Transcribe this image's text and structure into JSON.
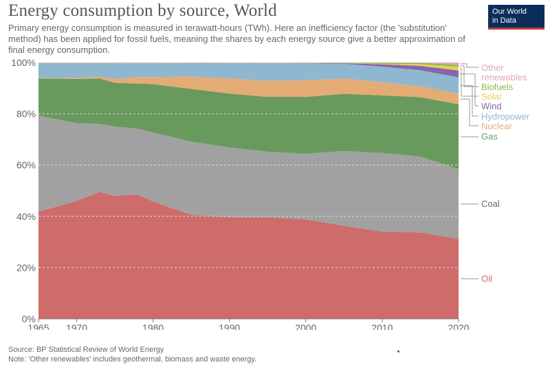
{
  "title": "Energy consumption by source, World",
  "subtitle": "Primary energy consumption is measured in terawatt-hours (TWh). Here an inefficiency factor (the 'substitution' method) has been applied for fossil fuels, meaning the shares by each energy source give a better approximation of final energy consumption.",
  "logo": {
    "line1": "Our World",
    "line2": "in Data"
  },
  "source": "Source: BP Statistical Review of World Energy",
  "note": "Note: 'Other renewables' includes geothermal, biomass and waste energy.",
  "colors": {
    "oil": "#ce6b6b",
    "coal": "#a1a1a1",
    "gas": "#689a5d",
    "nuclear": "#e5ab75",
    "hydropower": "#8fb7cf",
    "wind": "#8664ae",
    "solar": "#e6cf52",
    "biofuels": "#8fb64b",
    "other": "#dfa6b2"
  },
  "chart_data": {
    "type": "area",
    "stacked": true,
    "normalized": true,
    "title": "Energy consumption by source, World",
    "xlim": [
      1965,
      2020
    ],
    "ylim": [
      0,
      100
    ],
    "x_ticks": [
      1965,
      1970,
      1980,
      1990,
      2000,
      2010,
      2020
    ],
    "y_ticks": [
      0,
      20,
      40,
      60,
      80,
      100
    ],
    "y_tick_labels": [
      "0%",
      "20%",
      "40%",
      "60%",
      "80%",
      "100%"
    ],
    "x": [
      1965,
      1970,
      1973,
      1975,
      1978,
      1980,
      1985,
      1990,
      1995,
      2000,
      2005,
      2010,
      2015,
      2020
    ],
    "series": [
      {
        "name": "Oil",
        "label": "Oil",
        "values": [
          41.8,
          46.0,
          49.5,
          48.0,
          48.5,
          45.7,
          40.6,
          39.6,
          39.6,
          38.8,
          36.3,
          34.0,
          33.7,
          31.2
        ]
      },
      {
        "name": "Coal",
        "label": "Coal",
        "values": [
          37.5,
          30.3,
          26.6,
          27.0,
          25.7,
          27.0,
          28.5,
          27.3,
          25.6,
          25.6,
          29.2,
          30.7,
          29.6,
          27.2
        ]
      },
      {
        "name": "Gas",
        "label": "Gas",
        "values": [
          14.5,
          17.3,
          17.7,
          17.1,
          17.6,
          18.9,
          20.6,
          21.0,
          21.4,
          22.2,
          22.3,
          22.5,
          23.2,
          25.3
        ]
      },
      {
        "name": "Nuclear",
        "label": "Nuclear",
        "values": [
          0.2,
          0.4,
          0.7,
          1.5,
          2.5,
          2.7,
          4.8,
          5.9,
          6.2,
          6.5,
          6.0,
          5.1,
          4.3,
          4.1
        ]
      },
      {
        "name": "Hydropower",
        "label": "Hydropower",
        "values": [
          5.8,
          5.8,
          5.3,
          6.1,
          5.4,
          5.4,
          5.3,
          5.9,
          6.8,
          6.6,
          5.7,
          6.1,
          6.2,
          6.4
        ]
      },
      {
        "name": "Wind",
        "label": "Wind",
        "values": [
          0.0,
          0.0,
          0.0,
          0.0,
          0.0,
          0.0,
          0.0,
          0.0,
          0.0,
          0.1,
          0.2,
          0.9,
          1.7,
          2.7
        ]
      },
      {
        "name": "Solar",
        "label": "Solar",
        "values": [
          0.0,
          0.0,
          0.0,
          0.0,
          0.0,
          0.0,
          0.0,
          0.0,
          0.0,
          0.0,
          0.0,
          0.2,
          0.7,
          1.5
        ]
      },
      {
        "name": "Biofuels",
        "label": "Biofuels",
        "values": [
          0.0,
          0.0,
          0.0,
          0.0,
          0.0,
          0.0,
          0.1,
          0.1,
          0.1,
          0.1,
          0.2,
          0.5,
          0.5,
          0.6
        ]
      },
      {
        "name": "Other renewables",
        "label": "Other\nrenewables",
        "values": [
          0.2,
          0.2,
          0.2,
          0.3,
          0.3,
          0.3,
          0.1,
          0.2,
          0.3,
          0.1,
          0.1,
          0.0,
          0.1,
          1.0
        ]
      }
    ]
  }
}
